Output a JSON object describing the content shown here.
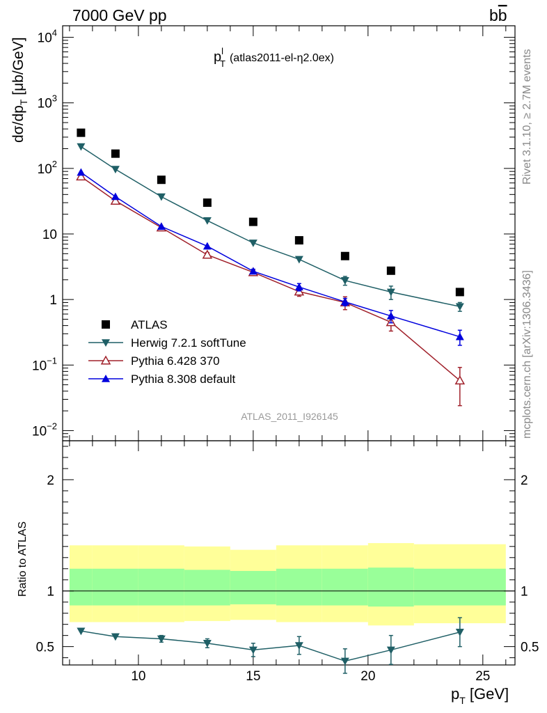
{
  "header": {
    "left": "7000 GeV pp",
    "right_base": "b",
    "right_bar": "b"
  },
  "title": {
    "main": "p",
    "sup": "l",
    "sub": "T",
    "tag": "(atlas2011-el-η2.0ex)"
  },
  "side": {
    "top": "Rivet 3.1.10, ≥ 2.7M events",
    "bottom": "mcplots.cern.ch [arXiv:1306.3436]"
  },
  "analysis_label": "ATLAS_2011_I926145",
  "axes": {
    "ylabel_main": "dσ/dp",
    "ylabel_sub": "T",
    "ylabel_unit": " [μb/GeV]",
    "ylabel_ratio": "Ratio to ATLAS",
    "xlabel_main": "p",
    "xlabel_sub": "T",
    "xlabel_unit": " [GeV]"
  },
  "colors": {
    "atlas": "#000000",
    "herwig": "#1f5f66",
    "pythia6": "#a0202a",
    "pythia8": "#0000dd",
    "band_stat": "#99ff99",
    "band_total": "#ffff99"
  },
  "chart_data": [
    {
      "type": "scatter",
      "name": "main",
      "yscale": "log",
      "xlim": [
        6.7,
        26.4
      ],
      "ylim": [
        0.007,
        15000
      ],
      "xticks": [
        10,
        15,
        20,
        25
      ],
      "yticks": [
        {
          "v": 0.01,
          "base": "10",
          "exp": "−2"
        },
        {
          "v": 0.1,
          "base": "10",
          "exp": "−1"
        },
        {
          "v": 1,
          "base": "1",
          "exp": ""
        },
        {
          "v": 10,
          "base": "10",
          "exp": ""
        },
        {
          "v": 100,
          "base": "10",
          "exp": "2"
        },
        {
          "v": 1000,
          "base": "10",
          "exp": "3"
        },
        {
          "v": 10000,
          "base": "10",
          "exp": "4"
        }
      ],
      "legend_position": "bottom-left",
      "series": [
        {
          "name": "ATLAS",
          "key": "atlas",
          "marker": "square",
          "x": [
            7.5,
            9,
            11,
            13,
            15,
            17,
            19,
            21,
            24
          ],
          "y": [
            350,
            168,
            67,
            30,
            15.3,
            8.0,
            4.6,
            2.75,
            1.3
          ],
          "err": [
            0,
            0,
            0,
            0,
            0,
            0,
            0,
            0,
            0
          ]
        },
        {
          "name": "Herwig 7.2.1 softTune",
          "key": "herwig",
          "marker": "triangle-down",
          "x": [
            7.5,
            9,
            11,
            13,
            15,
            17,
            19,
            21,
            24
          ],
          "y": [
            215,
            97,
            37,
            16,
            7.3,
            4.1,
            1.95,
            1.3,
            0.78
          ],
          "err": [
            0,
            0,
            0,
            0,
            0,
            0,
            0.3,
            0.3,
            0.12
          ]
        },
        {
          "name": "Pythia 6.428 370",
          "key": "pythia6",
          "marker": "triangle-up-open",
          "x": [
            7.5,
            9,
            11,
            13,
            15,
            17,
            19,
            21,
            24
          ],
          "y": [
            75,
            32,
            12.5,
            4.8,
            2.6,
            1.32,
            0.9,
            0.45,
            0.058
          ],
          "err": [
            0,
            0,
            0,
            0.4,
            0.2,
            0.2,
            0.2,
            0.12,
            0.034
          ]
        },
        {
          "name": "Pythia 8.308 default",
          "key": "pythia8",
          "marker": "triangle-up",
          "x": [
            7.5,
            9,
            11,
            13,
            15,
            17,
            19,
            21,
            24
          ],
          "y": [
            87,
            37,
            13,
            6.5,
            2.7,
            1.55,
            0.92,
            0.56,
            0.27
          ],
          "err": [
            0,
            0,
            0,
            0,
            0.2,
            0.2,
            0.12,
            0.12,
            0.07
          ]
        }
      ]
    },
    {
      "type": "scatter",
      "name": "ratio",
      "xlim": [
        6.7,
        26.4
      ],
      "ylim": [
        0.335,
        2.35
      ],
      "yticks": [
        0.5,
        1,
        2
      ],
      "reference": 1,
      "bins": [
        {
          "x0": 7,
          "x1": 8,
          "stat_lo": 0.87,
          "stat_hi": 1.2,
          "tot_lo": 0.72,
          "tot_hi": 1.41
        },
        {
          "x0": 8,
          "x1": 10,
          "stat_lo": 0.87,
          "stat_hi": 1.2,
          "tot_lo": 0.72,
          "tot_hi": 1.41
        },
        {
          "x0": 10,
          "x1": 12,
          "stat_lo": 0.87,
          "stat_hi": 1.2,
          "tot_lo": 0.72,
          "tot_hi": 1.41
        },
        {
          "x0": 12,
          "x1": 14,
          "stat_lo": 0.87,
          "stat_hi": 1.19,
          "tot_lo": 0.73,
          "tot_hi": 1.4
        },
        {
          "x0": 14,
          "x1": 16,
          "stat_lo": 0.88,
          "stat_hi": 1.18,
          "tot_lo": 0.74,
          "tot_hi": 1.37
        },
        {
          "x0": 16,
          "x1": 18,
          "stat_lo": 0.87,
          "stat_hi": 1.2,
          "tot_lo": 0.72,
          "tot_hi": 1.41
        },
        {
          "x0": 18,
          "x1": 20,
          "stat_lo": 0.87,
          "stat_hi": 1.2,
          "tot_lo": 0.72,
          "tot_hi": 1.41
        },
        {
          "x0": 20,
          "x1": 22,
          "stat_lo": 0.86,
          "stat_hi": 1.21,
          "tot_lo": 0.69,
          "tot_hi": 1.43
        },
        {
          "x0": 22,
          "x1": 26,
          "stat_lo": 0.87,
          "stat_hi": 1.2,
          "tot_lo": 0.71,
          "tot_hi": 1.42
        }
      ],
      "series": [
        {
          "name": "Herwig 7.2.1 softTune",
          "key": "herwig",
          "marker": "triangle-down",
          "x": [
            7.5,
            9,
            11,
            13,
            15,
            17,
            19,
            21,
            24
          ],
          "y": [
            0.64,
            0.59,
            0.57,
            0.53,
            0.47,
            0.51,
            0.37,
            0.47,
            0.63
          ],
          "err": [
            0,
            0,
            0.03,
            0.04,
            0.06,
            0.08,
            0.11,
            0.13,
            0.13
          ]
        }
      ]
    }
  ]
}
